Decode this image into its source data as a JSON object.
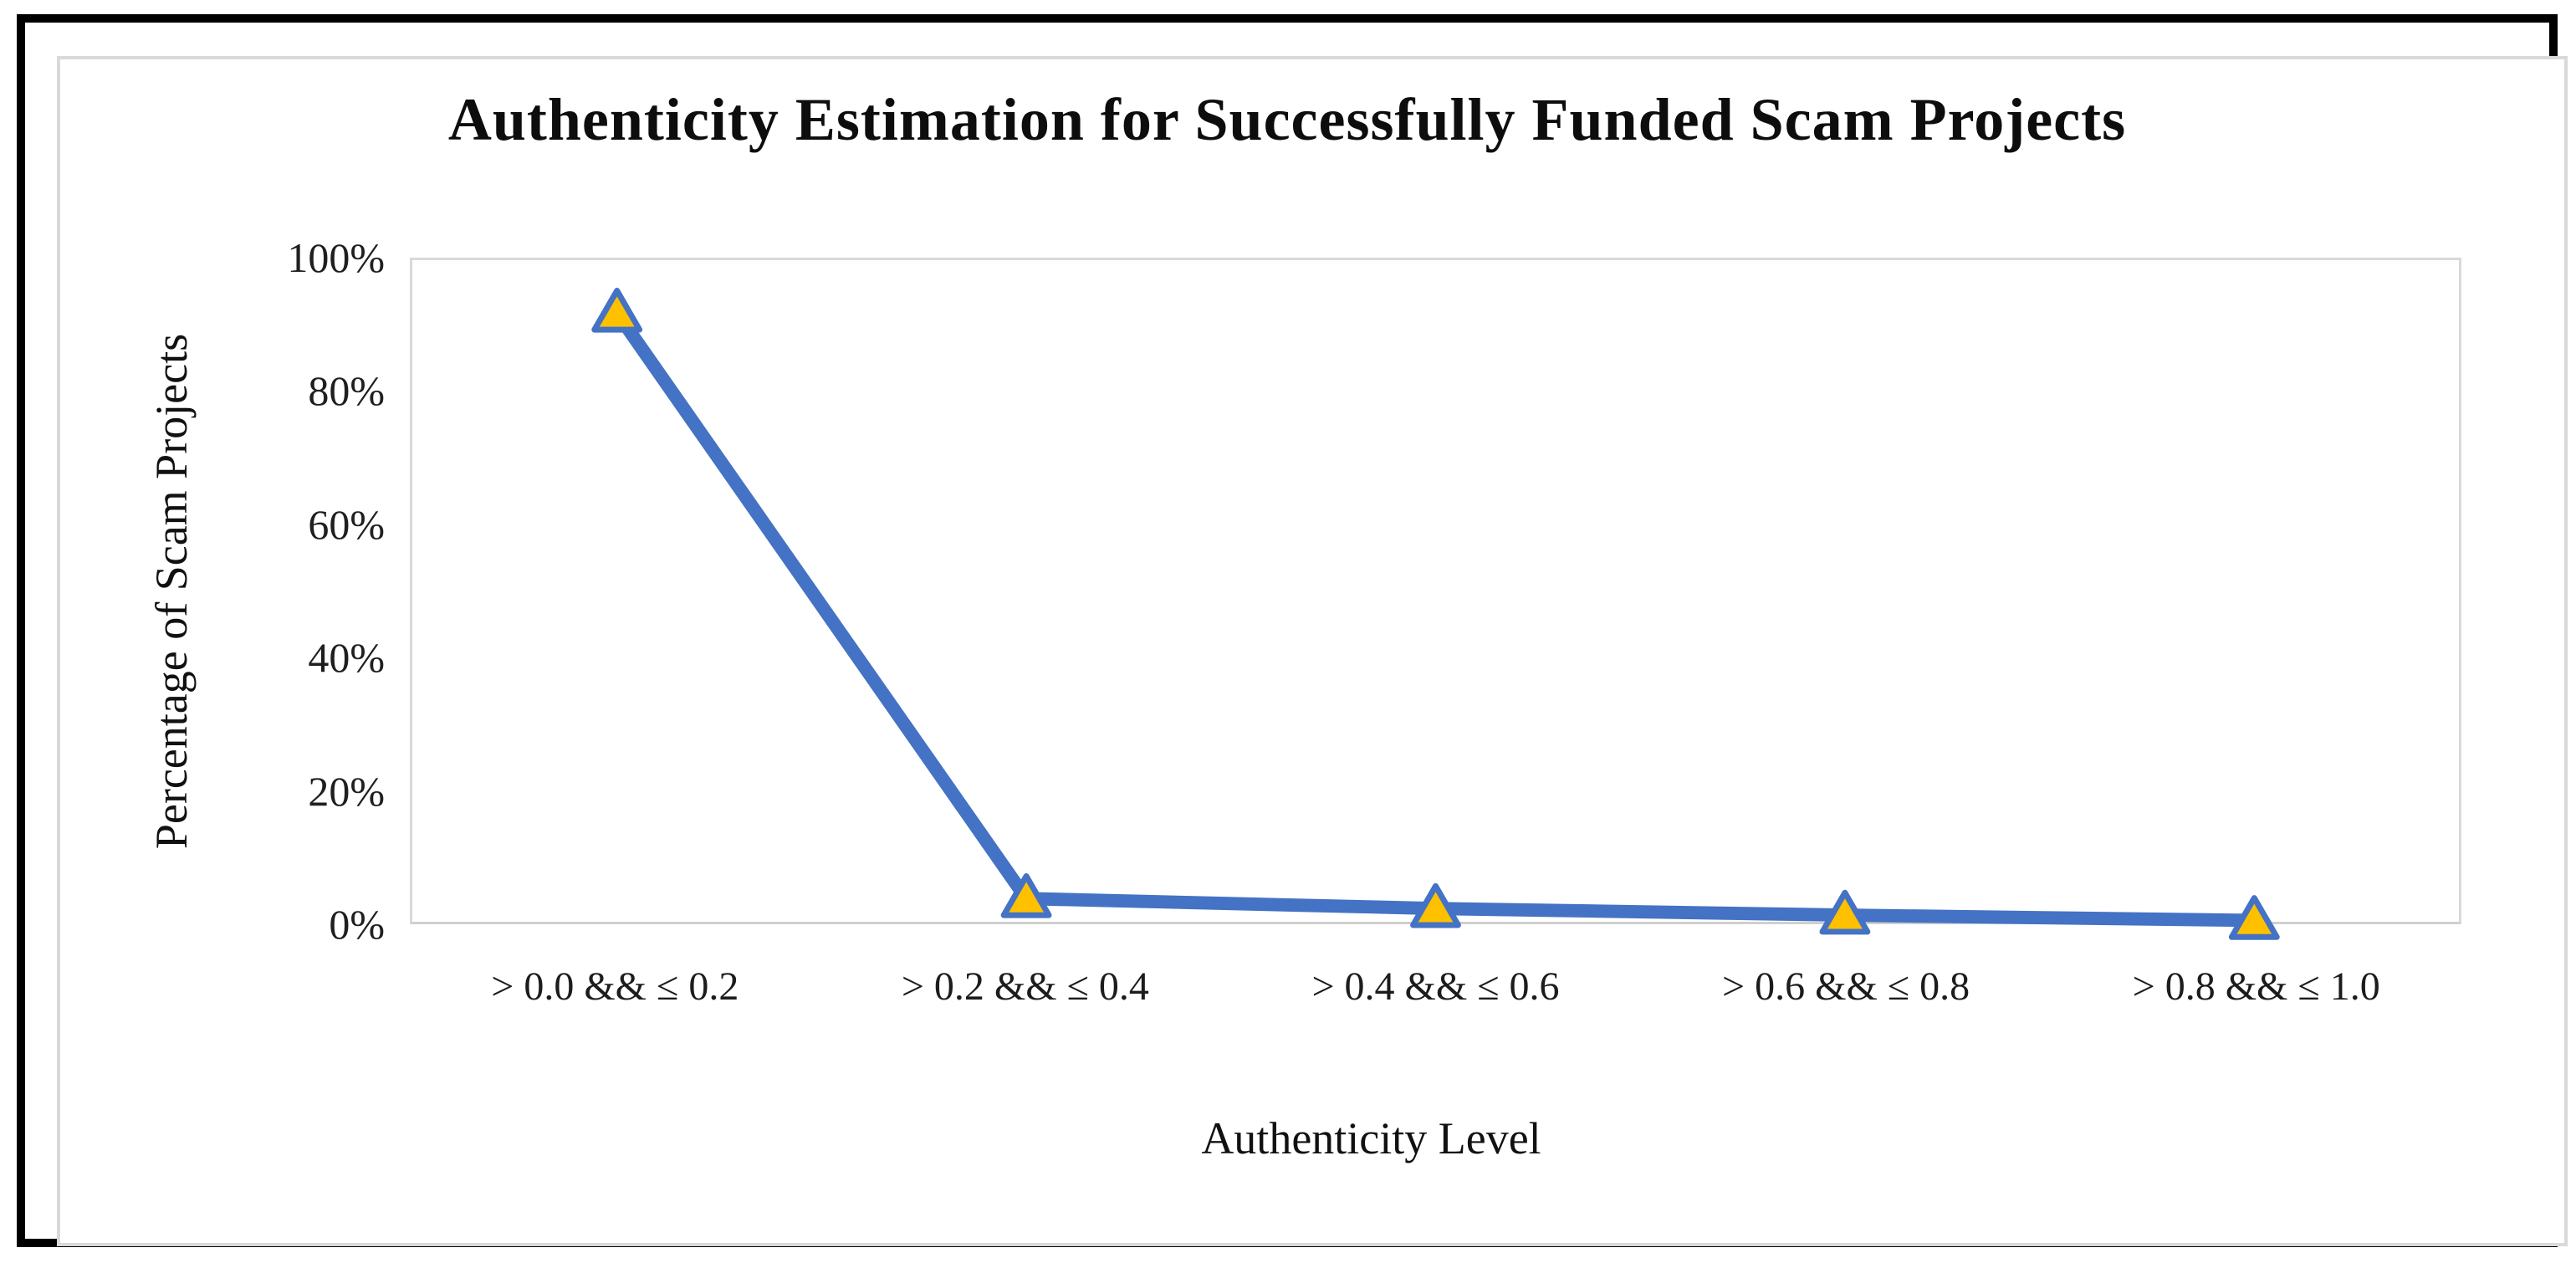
{
  "figure": {
    "outer_border_color": "#000000",
    "chart_border_color": "#d9d9d9",
    "background": "#ffffff"
  },
  "chart_data": {
    "type": "line",
    "title": "Authenticity Estimation for Successfully Funded Scam Projects",
    "xlabel": "Authenticity Level",
    "ylabel": "Percentage of Scam Projects",
    "categories": [
      "> 0.0 && ≤ 0.2",
      "> 0.2 && ≤ 0.4",
      "> 0.4 && ≤ 0.6",
      "> 0.6 && ≤ 0.8",
      "> 0.8 && ≤ 1.0"
    ],
    "series": [
      {
        "name": "Percentage of Scam Projects",
        "values": [
          92,
          3.5,
          2,
          1,
          0.2
        ]
      }
    ],
    "ylim": [
      0,
      100
    ],
    "yticks": [
      "0%",
      "20%",
      "40%",
      "60%",
      "80%",
      "100%"
    ],
    "grid": false,
    "legend_position": "none",
    "line_color": "#4472c4",
    "line_width": 16,
    "marker": "triangle",
    "marker_fill": "#ffc000",
    "marker_stroke": "#4472c4"
  }
}
